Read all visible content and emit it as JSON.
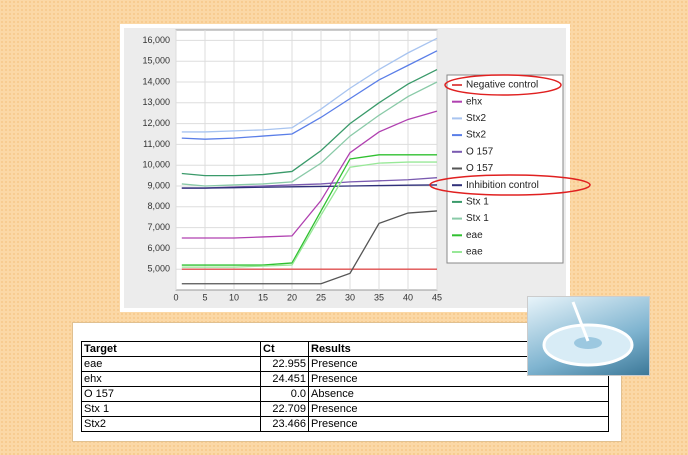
{
  "chart_data": {
    "type": "line",
    "x": [
      1,
      5,
      10,
      15,
      20,
      25,
      30,
      35,
      40,
      45
    ],
    "xlim": [
      0,
      45
    ],
    "xticks": [
      0,
      5,
      10,
      15,
      20,
      25,
      30,
      35,
      40,
      45
    ],
    "ylim": [
      4000,
      16500
    ],
    "yticks": [
      {
        "value": 5000,
        "label": "5,000"
      },
      {
        "value": 6000,
        "label": "6,000"
      },
      {
        "value": 7000,
        "label": "7,000"
      },
      {
        "value": 8000,
        "label": "8,000"
      },
      {
        "value": 9000,
        "label": "9,000"
      },
      {
        "value": 10000,
        "label": "10,000"
      },
      {
        "value": 11000,
        "label": "11,000"
      },
      {
        "value": 12000,
        "label": "12,000"
      },
      {
        "value": 13000,
        "label": "13,000"
      },
      {
        "value": 14000,
        "label": "14,000"
      },
      {
        "value": 15000,
        "label": "15,000"
      },
      {
        "value": 16000,
        "label": "16,000"
      }
    ],
    "grid": true,
    "series": [
      {
        "name": "Negative control",
        "color": "#e05050",
        "values": [
          5000,
          5000,
          5000,
          5000,
          5000,
          5000,
          5000,
          5000,
          5000,
          5000
        ]
      },
      {
        "name": "ehx",
        "color": "#b040b0",
        "values": [
          6500,
          6500,
          6500,
          6550,
          6600,
          8300,
          10600,
          11600,
          12200,
          12600
        ]
      },
      {
        "name": "Stx2",
        "color": "#a8c4f0",
        "values": [
          11600,
          11600,
          11650,
          11700,
          11800,
          12700,
          13700,
          14600,
          15400,
          16100
        ]
      },
      {
        "name": "Stx2",
        "color": "#5a7ee8",
        "values": [
          11300,
          11250,
          11300,
          11400,
          11500,
          12300,
          13200,
          14100,
          14800,
          15500
        ]
      },
      {
        "name": "O 157",
        "color": "#7a5ab0",
        "values": [
          8900,
          8900,
          8950,
          9000,
          9050,
          9100,
          9200,
          9250,
          9300,
          9400
        ]
      },
      {
        "name": "O 157",
        "color": "#555555",
        "values": [
          4300,
          4300,
          4300,
          4300,
          4300,
          4300,
          4800,
          7200,
          7700,
          7800
        ]
      },
      {
        "name": "Inhibition control",
        "color": "#30307a",
        "values": [
          8900,
          8900,
          8920,
          8940,
          8960,
          8980,
          9000,
          9020,
          9040,
          9050
        ]
      },
      {
        "name": "Stx 1",
        "color": "#3a9a6a",
        "values": [
          9600,
          9500,
          9500,
          9550,
          9700,
          10700,
          12000,
          13000,
          13900,
          14600
        ]
      },
      {
        "name": "Stx 1",
        "color": "#8acaa8",
        "values": [
          9100,
          9000,
          9050,
          9100,
          9200,
          10100,
          11400,
          12400,
          13300,
          14000
        ]
      },
      {
        "name": "eae",
        "color": "#30c030",
        "values": [
          5200,
          5200,
          5200,
          5200,
          5300,
          7800,
          10300,
          10500,
          10500,
          10500
        ]
      },
      {
        "name": "eae",
        "color": "#98e898",
        "values": [
          5100,
          5100,
          5100,
          5150,
          5200,
          7600,
          9900,
          10100,
          10150,
          10150
        ]
      }
    ]
  },
  "table": {
    "header": [
      "Target",
      "Ct",
      "Results"
    ],
    "rows": [
      [
        "eae",
        "22.955",
        "Presence"
      ],
      [
        "ehx",
        "24.451",
        "Presence"
      ],
      [
        "O 157",
        "0.0",
        "Absence"
      ],
      [
        "Stx 1",
        "22.709",
        "Presence"
      ],
      [
        "Stx2",
        "23.466",
        "Presence"
      ]
    ]
  }
}
